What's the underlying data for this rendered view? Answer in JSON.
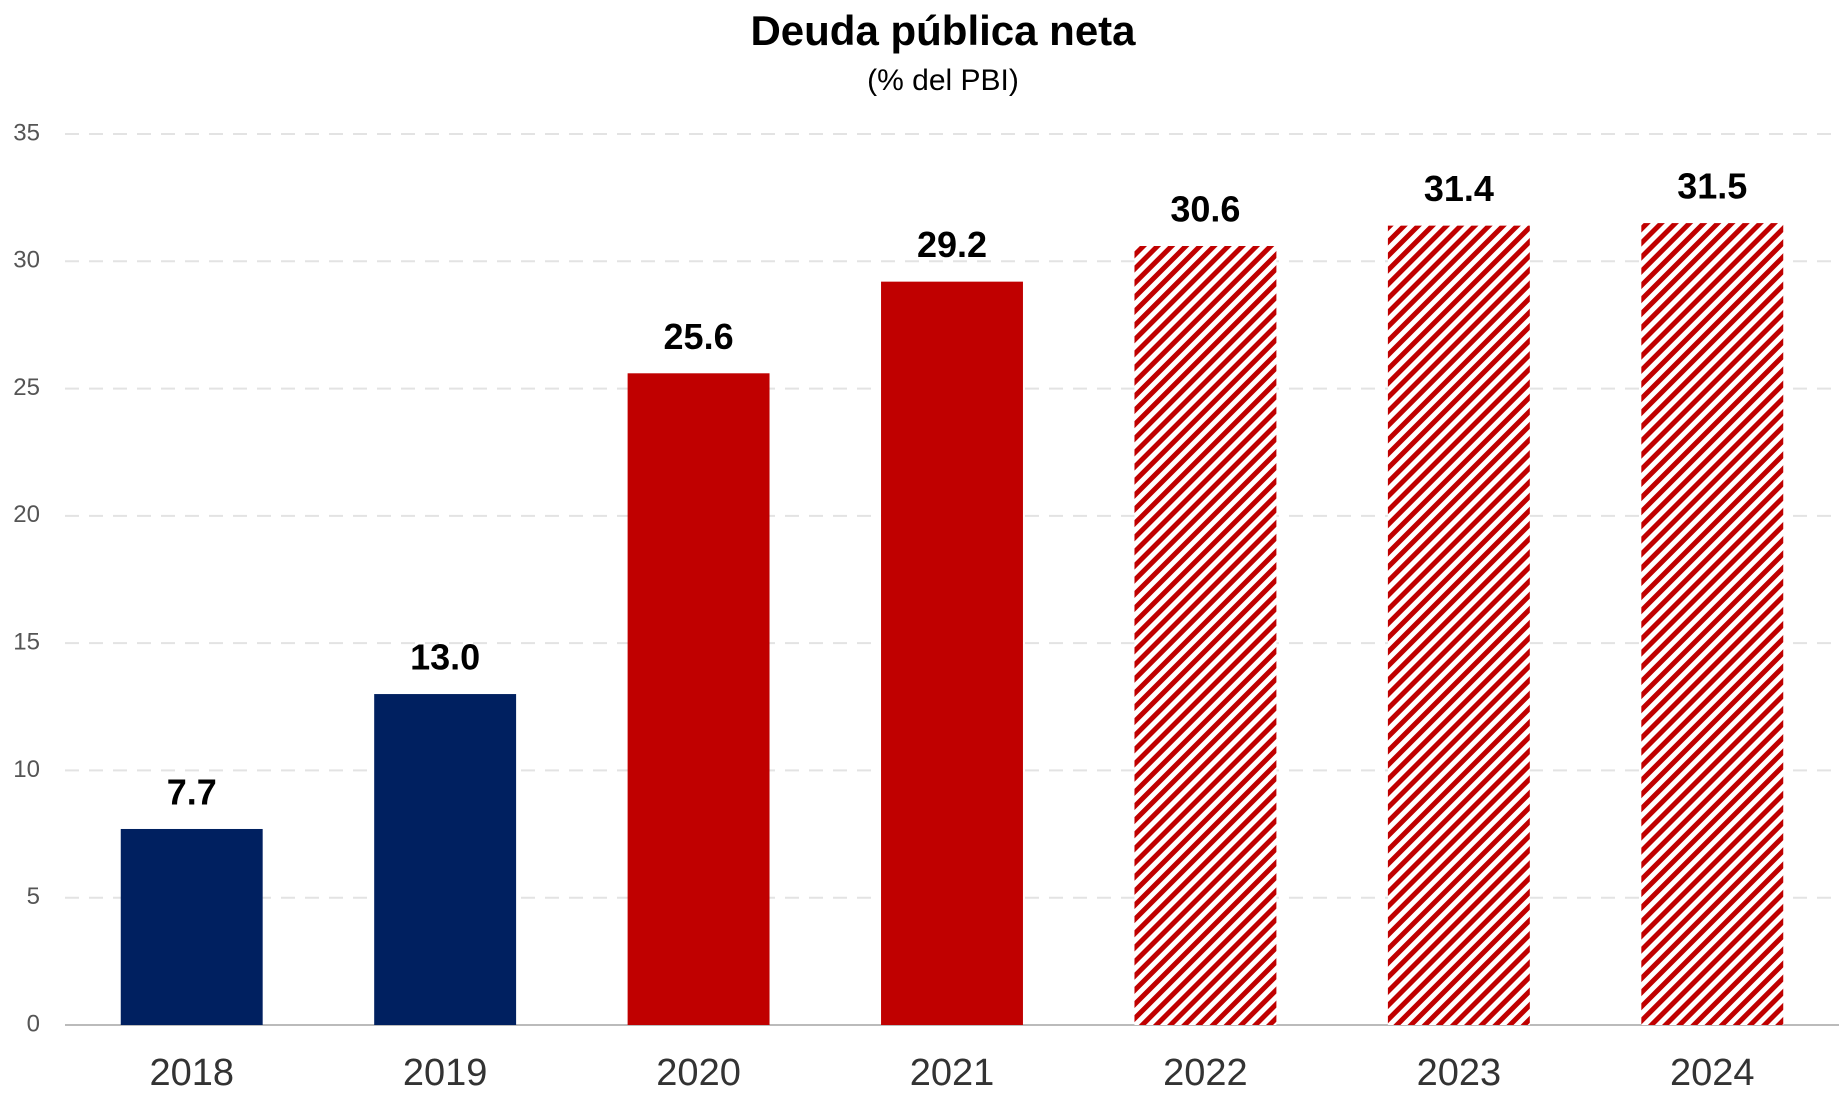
{
  "chart_data": {
    "type": "bar",
    "title": "Deuda pública neta",
    "subtitle": "(% del PBI)",
    "categories": [
      "2018",
      "2019",
      "2020",
      "2021",
      "2022",
      "2023",
      "2024"
    ],
    "values": [
      7.7,
      13.0,
      25.6,
      29.2,
      30.6,
      31.4,
      31.5
    ],
    "value_labels": [
      "7.7",
      "13.0",
      "25.6",
      "29.2",
      "30.6",
      "31.4",
      "31.5"
    ],
    "colors": [
      "#002060",
      "#002060",
      "#c00000",
      "#c00000",
      "#c00000",
      "#c00000",
      "#c00000"
    ],
    "fill_styles": [
      "solid",
      "solid",
      "solid",
      "solid",
      "hatch",
      "hatch",
      "hatch"
    ],
    "ylim": [
      0,
      35
    ],
    "yticks": [
      0,
      5,
      10,
      15,
      20,
      25,
      30,
      35
    ],
    "grid": true
  }
}
